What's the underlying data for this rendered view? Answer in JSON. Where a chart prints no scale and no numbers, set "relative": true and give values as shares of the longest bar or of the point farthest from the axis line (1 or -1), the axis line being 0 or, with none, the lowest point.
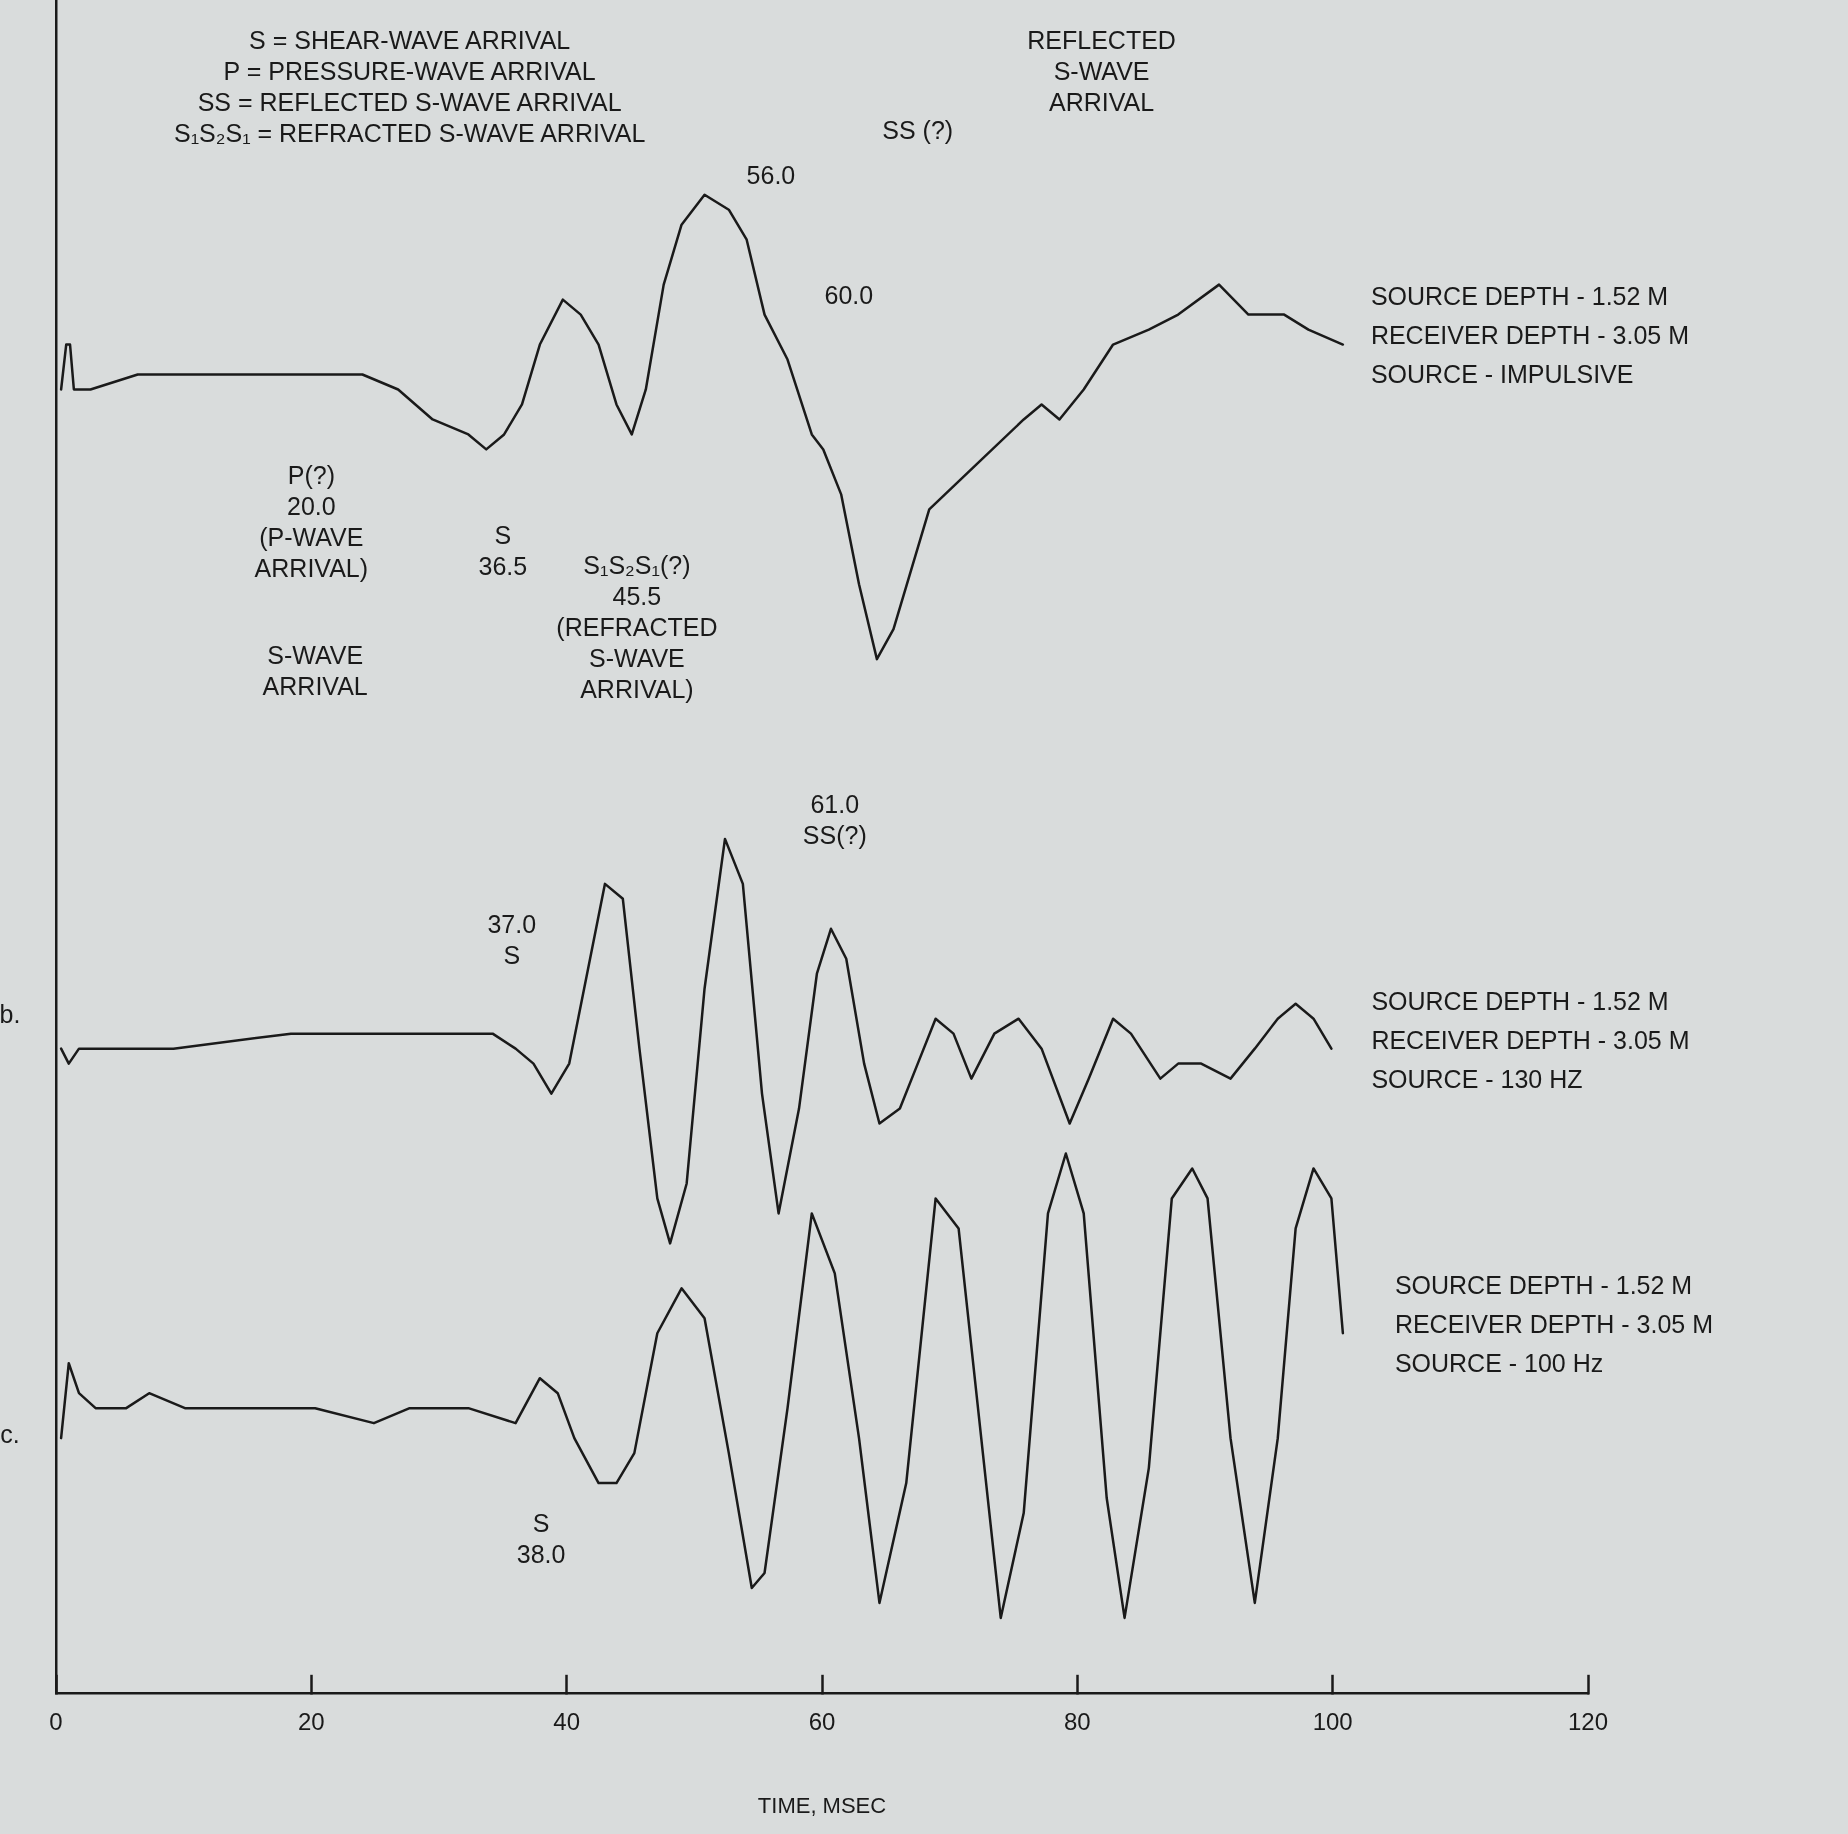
{
  "chart_data": {
    "type": "line",
    "relative": true,
    "xlabel": "TIME, MSEC",
    "xlim": [
      0,
      120
    ],
    "xticks": [
      0,
      20,
      40,
      60,
      80,
      100,
      120
    ],
    "grid": false,
    "legend": false,
    "marker": "none",
    "line_style": "solid",
    "series": [
      {
        "name": "SOURCE DEPTH - 1.52 M\nRECEIVER DEPTH - 3.05 M\nSOURCE - IMPULSIVE",
        "color": "#1a1a1a",
        "x": [
          0.4,
          0.8,
          1.1,
          1.4,
          2.7,
          6.4,
          9.2,
          12.9,
          16.6,
          20.3,
          24.0,
          26.8,
          29.5,
          32.3,
          33.7,
          35.1,
          36.5,
          37.9,
          39.7,
          41.1,
          42.5,
          43.9,
          45.1,
          46.2,
          47.6,
          49.0,
          50.8,
          52.7,
          54.1,
          55.5,
          57.3,
          59.2,
          60.1,
          61.5,
          62.9,
          64.3,
          65.6,
          68.4,
          72.1,
          75.8,
          77.2,
          78.6,
          80.5,
          82.8,
          85.6,
          87.9,
          91.1,
          93.4,
          96.2,
          98.1,
          100.8
        ],
        "values": [
          0.87,
          0.9,
          0.9,
          0.87,
          0.87,
          0.88,
          0.88,
          0.88,
          0.88,
          0.88,
          0.88,
          0.87,
          0.85,
          0.84,
          0.83,
          0.84,
          0.86,
          0.9,
          0.93,
          0.92,
          0.9,
          0.86,
          0.84,
          0.87,
          0.94,
          0.98,
          1,
          0.99,
          0.97,
          0.92,
          0.89,
          0.84,
          0.83,
          0.8,
          0.74,
          0.69,
          0.71,
          0.79,
          0.82,
          0.85,
          0.86,
          0.85,
          0.87,
          0.9,
          0.91,
          0.92,
          0.94,
          0.92,
          0.92,
          0.91,
          0.9
        ]
      },
      {
        "name": "SOURCE DEPTH - 1.52 M\nRECEIVER DEPTH - 3.05 M\nSOURCE - 130 HZ",
        "color": "#1a1a1a",
        "x": [
          0.4,
          1.0,
          1.8,
          9.2,
          18.4,
          23.1,
          27.7,
          34.2,
          36.0,
          37.4,
          38.8,
          40.2,
          41.6,
          43.0,
          44.4,
          45.7,
          47.1,
          48.1,
          49.4,
          50.8,
          52.4,
          53.8,
          55.3,
          56.6,
          58.2,
          59.6,
          60.7,
          61.9,
          63.3,
          64.5,
          66.1,
          67.5,
          68.9,
          70.3,
          71.7,
          73.5,
          75.4,
          77.2,
          79.4,
          80.9,
          82.8,
          84.2,
          86.5,
          87.9,
          89.7,
          92.0,
          93.9,
          95.7,
          97.1,
          98.5,
          99.9
        ],
        "values": [
          0.43,
          0.42,
          0.43,
          0.43,
          0.44,
          0.44,
          0.44,
          0.44,
          0.43,
          0.42,
          0.4,
          0.42,
          0.48,
          0.54,
          0.53,
          0.43,
          0.33,
          0.3,
          0.34,
          0.47,
          0.57,
          0.54,
          0.4,
          0.32,
          0.39,
          0.48,
          0.51,
          0.49,
          0.42,
          0.38,
          0.39,
          0.42,
          0.45,
          0.44,
          0.41,
          0.44,
          0.45,
          0.43,
          0.38,
          0.41,
          0.45,
          0.44,
          0.41,
          0.42,
          0.42,
          0.41,
          0.43,
          0.45,
          0.46,
          0.45,
          0.43
        ]
      },
      {
        "name": "SOURCE DEPTH - 1.52 M\nRECEIVER DEPTH - 3.05 M\nSOURCE - 100 Hz",
        "color": "#1a1a1a",
        "x": [
          0.4,
          1.0,
          1.8,
          3.1,
          5.5,
          7.3,
          10.1,
          13.8,
          20.3,
          24.9,
          27.7,
          32.3,
          36.0,
          37.9,
          39.3,
          40.6,
          42.5,
          43.9,
          45.3,
          47.1,
          49.0,
          50.8,
          52.7,
          54.5,
          55.5,
          57.3,
          59.2,
          61.0,
          62.9,
          64.5,
          66.6,
          68.9,
          70.7,
          72.6,
          74.0,
          75.8,
          77.7,
          79.1,
          80.5,
          82.3,
          83.7,
          85.6,
          87.4,
          89.0,
          90.2,
          92.0,
          93.9,
          95.7,
          97.1,
          98.5,
          99.9,
          100.8
        ],
        "values": [
          0.17,
          0.22,
          0.2,
          0.19,
          0.19,
          0.2,
          0.19,
          0.19,
          0.19,
          0.18,
          0.19,
          0.19,
          0.18,
          0.21,
          0.2,
          0.17,
          0.14,
          0.14,
          0.16,
          0.24,
          0.27,
          0.25,
          0.16,
          0.07,
          0.08,
          0.19,
          0.32,
          0.28,
          0.17,
          0.06,
          0.14,
          0.33,
          0.31,
          0.16,
          0.05,
          0.12,
          0.32,
          0.36,
          0.32,
          0.13,
          0.05,
          0.15,
          0.33,
          0.35,
          0.33,
          0.17,
          0.06,
          0.17,
          0.31,
          0.35,
          0.33,
          0.24
        ]
      }
    ],
    "annotations": [
      "S = SHEAR-WAVE ARRIVAL\nP = PRESSURE-WAVE ARRIVAL\nSS = REFLECTED S-WAVE ARRIVAL\nS₁S₂S₁ = REFRACTED S-WAVE ARRIVAL",
      "P(?)\n20.0\n(P-WAVE\nARRIVAL)",
      "S\n36.5",
      "S-WAVE\nARRIVAL",
      "S₁S₂S₁(?)\n45.5\n(REFRACTED\nS-WAVE\nARRIVAL)",
      "56.0",
      "SS (?)",
      "60.0",
      "REFLECTED\nS-WAVE\nARRIVAL",
      "61.0\nSS(?)",
      "37.0\nS",
      "S\n38.0",
      "b.",
      "c."
    ]
  }
}
